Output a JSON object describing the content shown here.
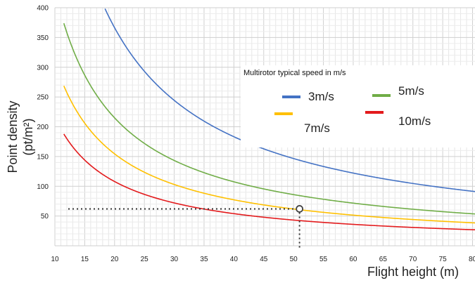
{
  "chart_data": {
    "type": "line",
    "title": "",
    "xlabel": "Flight height (m)",
    "ylabel_line1": "Point density",
    "ylabel_line2": "(pt/m²)",
    "xlim": [
      10,
      81
    ],
    "ylim": [
      0,
      400
    ],
    "xticks": [
      10,
      15,
      20,
      25,
      30,
      35,
      40,
      45,
      50,
      55,
      60,
      65,
      70,
      75,
      80
    ],
    "yticks": [
      50,
      100,
      150,
      200,
      250,
      300,
      350,
      400
    ],
    "grid": true,
    "legend": {
      "title": "Multirotor typical speed in m/s",
      "placement": "top-right"
    },
    "series": [
      {
        "name": "3m/s",
        "color": "#4472C4",
        "k": 7330
      },
      {
        "name": "5m/s",
        "color": "#70AD47",
        "k": 4300
      },
      {
        "name": "7m/s",
        "color": "#FFC000",
        "k": 3090
      },
      {
        "name": "10m/s",
        "color": "#E31A1C",
        "k": 2160
      }
    ],
    "series_formula": "y = k / x",
    "x_range": [
      11.5,
      81
    ],
    "annotation": {
      "x": 51,
      "y": 62,
      "style": "dotted guide lines to both axes with open circle marker"
    }
  }
}
